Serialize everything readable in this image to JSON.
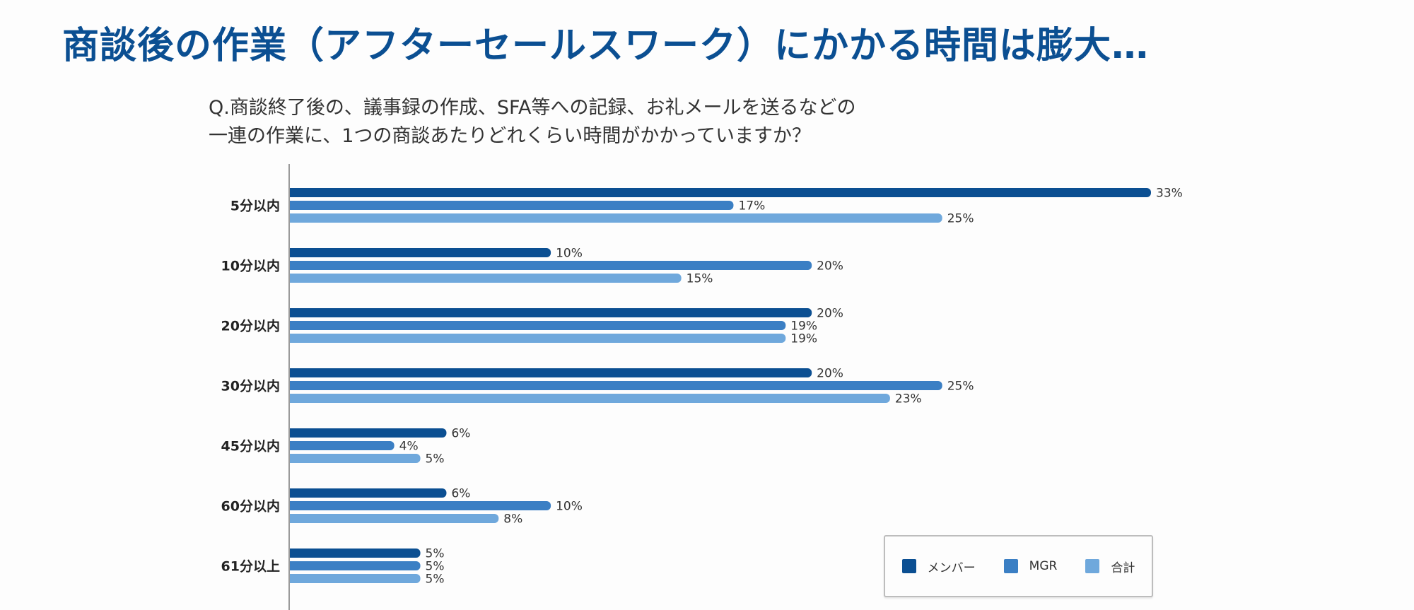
{
  "title": "商談後の作業（アフターセールスワーク）にかかる時間は膨大…",
  "question": {
    "line1": "Q.商談終了後の、議事録の作成、SFA等への記録、お礼メールを送るなどの",
    "line2": "一連の作業に、1つの商談あたりどれくらい時間がかかっていますか？"
  },
  "chart_data": {
    "type": "bar",
    "orientation": "horizontal",
    "title": "",
    "xlabel": "",
    "ylabel": "",
    "xlim": [
      0,
      33
    ],
    "grid": false,
    "legend_position": "bottom-right",
    "value_suffix": "%",
    "categories": [
      "5分以内",
      "10分以内",
      "20分以内",
      "30分以内",
      "45分以内",
      "60分以内",
      "61分以上"
    ],
    "series": [
      {
        "name": "メンバー",
        "color": "#0b4f92",
        "values": [
          33,
          10,
          20,
          20,
          6,
          6,
          5
        ]
      },
      {
        "name": "MGR",
        "color": "#3b7fc4",
        "values": [
          17,
          20,
          19,
          25,
          4,
          10,
          5
        ]
      },
      {
        "name": "合計",
        "color": "#6fa8dc",
        "values": [
          25,
          15,
          19,
          23,
          5,
          8,
          5
        ]
      }
    ]
  }
}
